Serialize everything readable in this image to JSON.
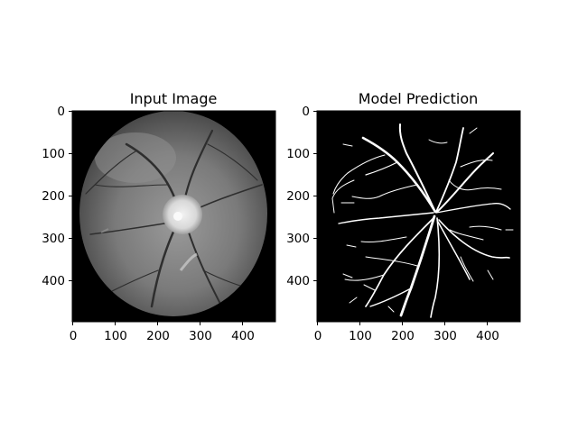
{
  "panels": [
    {
      "title": "Input Image",
      "x_ticks": [
        "0",
        "100",
        "200",
        "300",
        "400"
      ],
      "y_ticks": [
        "0",
        "100",
        "200",
        "300",
        "400"
      ]
    },
    {
      "title": "Model Prediction",
      "x_ticks": [
        "0",
        "100",
        "200",
        "300",
        "400"
      ],
      "y_ticks": [
        "0",
        "100",
        "200",
        "300",
        "400"
      ]
    }
  ],
  "colors": {
    "background": "#000000",
    "vessel_prediction": "#ffffff",
    "optic_disc": "#e6e6e6",
    "retina_mid": "#7a7a7a"
  }
}
